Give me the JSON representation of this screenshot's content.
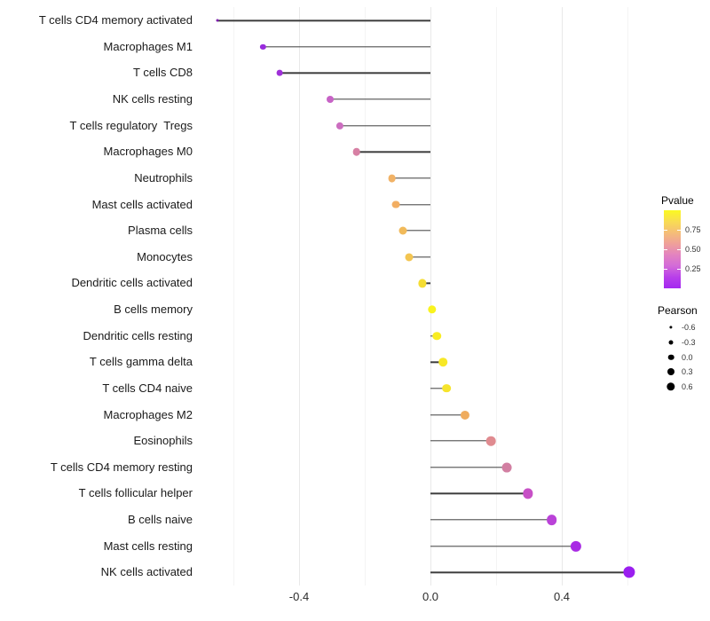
{
  "chart_data": {
    "type": "lollipop",
    "title": "",
    "xlabel": "",
    "ylabel": "",
    "x_axis": {
      "range": [
        -0.712,
        0.668
      ],
      "ticks": [
        -0.4,
        0,
        0.4
      ],
      "tick_labels": [
        "-0.4",
        "0.0",
        "0.4"
      ],
      "gridlines": [
        -0.6,
        -0.4,
        -0.2,
        0,
        0.2,
        0.4,
        0.6
      ],
      "grid_on": true
    },
    "points": [
      {
        "label": "T cells CD4 memory activated",
        "pearson": -0.65,
        "pvalue": 0.005,
        "color": "#7F1FAE",
        "size": 3.0
      },
      {
        "label": "Macrophages M1",
        "pearson": -0.51,
        "pvalue": 0.03,
        "color": "#982BDC",
        "size": 6.3
      },
      {
        "label": "T cells CD8",
        "pearson": -0.46,
        "pvalue": 0.05,
        "color": "#9F30D8",
        "size": 6.8
      },
      {
        "label": "NK cells resting",
        "pearson": -0.305,
        "pvalue": 0.18,
        "color": "#C763C6",
        "size": 8.0
      },
      {
        "label": "T cells regulatory  Tregs",
        "pearson": -0.275,
        "pvalue": 0.22,
        "color": "#CC6EC0",
        "size": 8.2
      },
      {
        "label": "Macrophages M0",
        "pearson": -0.225,
        "pvalue": 0.33,
        "color": "#D780A4",
        "size": 8.6
      },
      {
        "label": "Neutrophils",
        "pearson": -0.117,
        "pvalue": 0.62,
        "color": "#F1B266",
        "size": 8.8
      },
      {
        "label": "Mast cells activated",
        "pearson": -0.105,
        "pvalue": 0.6,
        "color": "#F2AE62",
        "size": 8.9
      },
      {
        "label": "Plasma cells",
        "pearson": -0.085,
        "pvalue": 0.66,
        "color": "#F1BA5A",
        "size": 9.0
      },
      {
        "label": "Monocytes",
        "pearson": -0.065,
        "pvalue": 0.7,
        "color": "#F3C551",
        "size": 9.1
      },
      {
        "label": "Dendritic cells activated",
        "pearson": -0.024,
        "pvalue": 0.83,
        "color": "#F5DD33",
        "size": 9.2
      },
      {
        "label": "B cells memory",
        "pearson": 0.005,
        "pvalue": 0.95,
        "color": "#F9F31E",
        "size": 9.4
      },
      {
        "label": "Dendritic cells resting",
        "pearson": 0.02,
        "pvalue": 0.92,
        "color": "#F8EC22",
        "size": 9.5
      },
      {
        "label": "T cells gamma delta",
        "pearson": 0.039,
        "pvalue": 0.89,
        "color": "#F7E827",
        "size": 9.6
      },
      {
        "label": "T cells CD4 naive",
        "pearson": 0.049,
        "pvalue": 0.87,
        "color": "#F6E42C",
        "size": 9.7
      },
      {
        "label": "Macrophages M2",
        "pearson": 0.105,
        "pvalue": 0.6,
        "color": "#EFAC5E",
        "size": 10.1
      },
      {
        "label": "Eosinophils",
        "pearson": 0.184,
        "pvalue": 0.47,
        "color": "#E08B90",
        "size": 10.6
      },
      {
        "label": "T cells CD4 memory resting",
        "pearson": 0.232,
        "pvalue": 0.35,
        "color": "#D27FA2",
        "size": 10.9
      },
      {
        "label": "T cells follicular helper",
        "pearson": 0.297,
        "pvalue": 0.16,
        "color": "#C750C6",
        "size": 11.3
      },
      {
        "label": "B cells naive",
        "pearson": 0.369,
        "pvalue": 0.09,
        "color": "#BA42D8",
        "size": 11.7
      },
      {
        "label": "Mast cells resting",
        "pearson": 0.444,
        "pvalue": 0.04,
        "color": "#A92BE4",
        "size": 12.2
      },
      {
        "label": "NK cells activated",
        "pearson": 0.605,
        "pvalue": 0.008,
        "color": "#9A1FEF",
        "size": 13.2
      }
    ]
  },
  "legend": {
    "pvalue": {
      "title": "Pvalue",
      "range": [
        0,
        1
      ],
      "tick_values": [
        0.75,
        0.5,
        0.25
      ],
      "tick_labels": [
        "0.75",
        "0.50",
        "0.25"
      ],
      "gradient_top_to_bottom": [
        "#FBF921",
        "#F8DC52",
        "#F5BE77",
        "#EFA09A",
        "#E383C0",
        "#D36BD8",
        "#B83FEA",
        "#A428F0"
      ]
    },
    "pearson": {
      "title": "Pearson",
      "items": [
        {
          "label": "-0.6",
          "size": 3.2
        },
        {
          "label": "-0.3",
          "size": 5.0
        },
        {
          "label": "0.0",
          "size": 6.6
        },
        {
          "label": "0.3",
          "size": 8.0
        },
        {
          "label": "0.6",
          "size": 9.4
        }
      ],
      "dot_color": "#000000"
    }
  },
  "colors": {
    "background": "#ffffff",
    "stick": "#3e3e3e",
    "grid_major": "#e9e9e9",
    "grid_minor": "#f4f4f4",
    "axis_text": "#2b2b2b",
    "label_text": "#1a1a1a"
  }
}
